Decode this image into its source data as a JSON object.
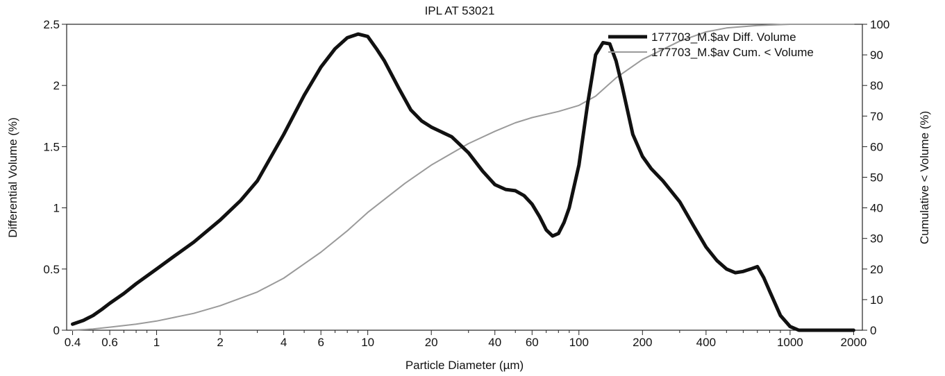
{
  "chart_data": {
    "type": "line",
    "title": "IPL AT 53021",
    "xlabel": "Particle Diameter (µm)",
    "ylabel_left": "Differential Volume (%)",
    "ylabel_right": "Cumulative < Volume (%)",
    "x_scale": "log",
    "xlim": [
      0.375,
      2200
    ],
    "ylim_left": [
      0,
      2.5
    ],
    "ylim_right": [
      0,
      100
    ],
    "x_ticks": [
      {
        "value": 0.4,
        "label": "0.4"
      },
      {
        "value": 0.6,
        "label": "0.6"
      },
      {
        "value": 1,
        "label": "1"
      },
      {
        "value": 2,
        "label": "2"
      },
      {
        "value": 4,
        "label": "4"
      },
      {
        "value": 6,
        "label": "6"
      },
      {
        "value": 10,
        "label": "10"
      },
      {
        "value": 20,
        "label": "20"
      },
      {
        "value": 40,
        "label": "40"
      },
      {
        "value": 60,
        "label": "60"
      },
      {
        "value": 100,
        "label": "100"
      },
      {
        "value": 200,
        "label": "200"
      },
      {
        "value": 400,
        "label": "400"
      },
      {
        "value": 1000,
        "label": "1000"
      },
      {
        "value": 2000,
        "label": "2000"
      }
    ],
    "y_left_ticks": [
      {
        "value": 0,
        "label": "0"
      },
      {
        "value": 0.5,
        "label": "0.5"
      },
      {
        "value": 1,
        "label": "1"
      },
      {
        "value": 1.5,
        "label": "1.5"
      },
      {
        "value": 2,
        "label": "2"
      },
      {
        "value": 2.5,
        "label": "2.5"
      }
    ],
    "y_right_ticks": [
      {
        "value": 0,
        "label": "0"
      },
      {
        "value": 10,
        "label": "10"
      },
      {
        "value": 20,
        "label": "20"
      },
      {
        "value": 30,
        "label": "30"
      },
      {
        "value": 40,
        "label": "40"
      },
      {
        "value": 50,
        "label": "50"
      },
      {
        "value": 60,
        "label": "60"
      },
      {
        "value": 70,
        "label": "70"
      },
      {
        "value": 80,
        "label": "80"
      },
      {
        "value": 90,
        "label": "90"
      },
      {
        "value": 100,
        "label": "100"
      }
    ],
    "legend_position": "top-right",
    "grid": false,
    "series": [
      {
        "name": "177703_M.$av Diff. Volume",
        "axis": "left",
        "color": "#111111",
        "style": "thick",
        "x": [
          0.4,
          0.45,
          0.5,
          0.55,
          0.6,
          0.7,
          0.8,
          1,
          1.2,
          1.5,
          2,
          2.5,
          3,
          4,
          5,
          6,
          7,
          8,
          9,
          10,
          11,
          12,
          14,
          16,
          18,
          20,
          25,
          30,
          35,
          40,
          45,
          50,
          55,
          60,
          65,
          70,
          75,
          80,
          85,
          90,
          100,
          110,
          120,
          130,
          140,
          150,
          160,
          180,
          200,
          220,
          250,
          300,
          350,
          400,
          450,
          500,
          550,
          600,
          650,
          700,
          750,
          800,
          900,
          1000,
          1100,
          1500,
          2000
        ],
        "y": [
          0.05,
          0.08,
          0.12,
          0.17,
          0.22,
          0.3,
          0.38,
          0.5,
          0.6,
          0.72,
          0.9,
          1.06,
          1.22,
          1.6,
          1.92,
          2.15,
          2.3,
          2.39,
          2.42,
          2.4,
          2.3,
          2.2,
          1.98,
          1.8,
          1.71,
          1.66,
          1.58,
          1.45,
          1.3,
          1.19,
          1.15,
          1.14,
          1.1,
          1.03,
          0.93,
          0.82,
          0.77,
          0.79,
          0.88,
          1.0,
          1.35,
          1.85,
          2.25,
          2.35,
          2.34,
          2.2,
          2.0,
          1.6,
          1.42,
          1.32,
          1.22,
          1.05,
          0.85,
          0.68,
          0.57,
          0.5,
          0.47,
          0.48,
          0.5,
          0.52,
          0.43,
          0.32,
          0.12,
          0.03,
          0.0,
          0.0,
          0.0
        ]
      },
      {
        "name": "177703_M.$av Cum. < Volume",
        "axis": "right",
        "color": "#9a9a9a",
        "style": "thin",
        "x": [
          0.4,
          0.5,
          0.6,
          0.8,
          1,
          1.5,
          2,
          3,
          4,
          6,
          8,
          10,
          15,
          20,
          30,
          40,
          50,
          60,
          80,
          100,
          120,
          150,
          200,
          300,
          400,
          500,
          700,
          1000,
          1500,
          2000
        ],
        "y": [
          0.0,
          0.4,
          1.0,
          2.0,
          3.0,
          5.5,
          8.0,
          12.5,
          17.0,
          25.5,
          32.5,
          38.5,
          48.0,
          54.0,
          61.0,
          65.0,
          67.8,
          69.5,
          71.5,
          73.5,
          76.5,
          82.5,
          88.5,
          94.5,
          97.5,
          98.8,
          99.6,
          100.0,
          100.0,
          100.0
        ]
      }
    ]
  }
}
